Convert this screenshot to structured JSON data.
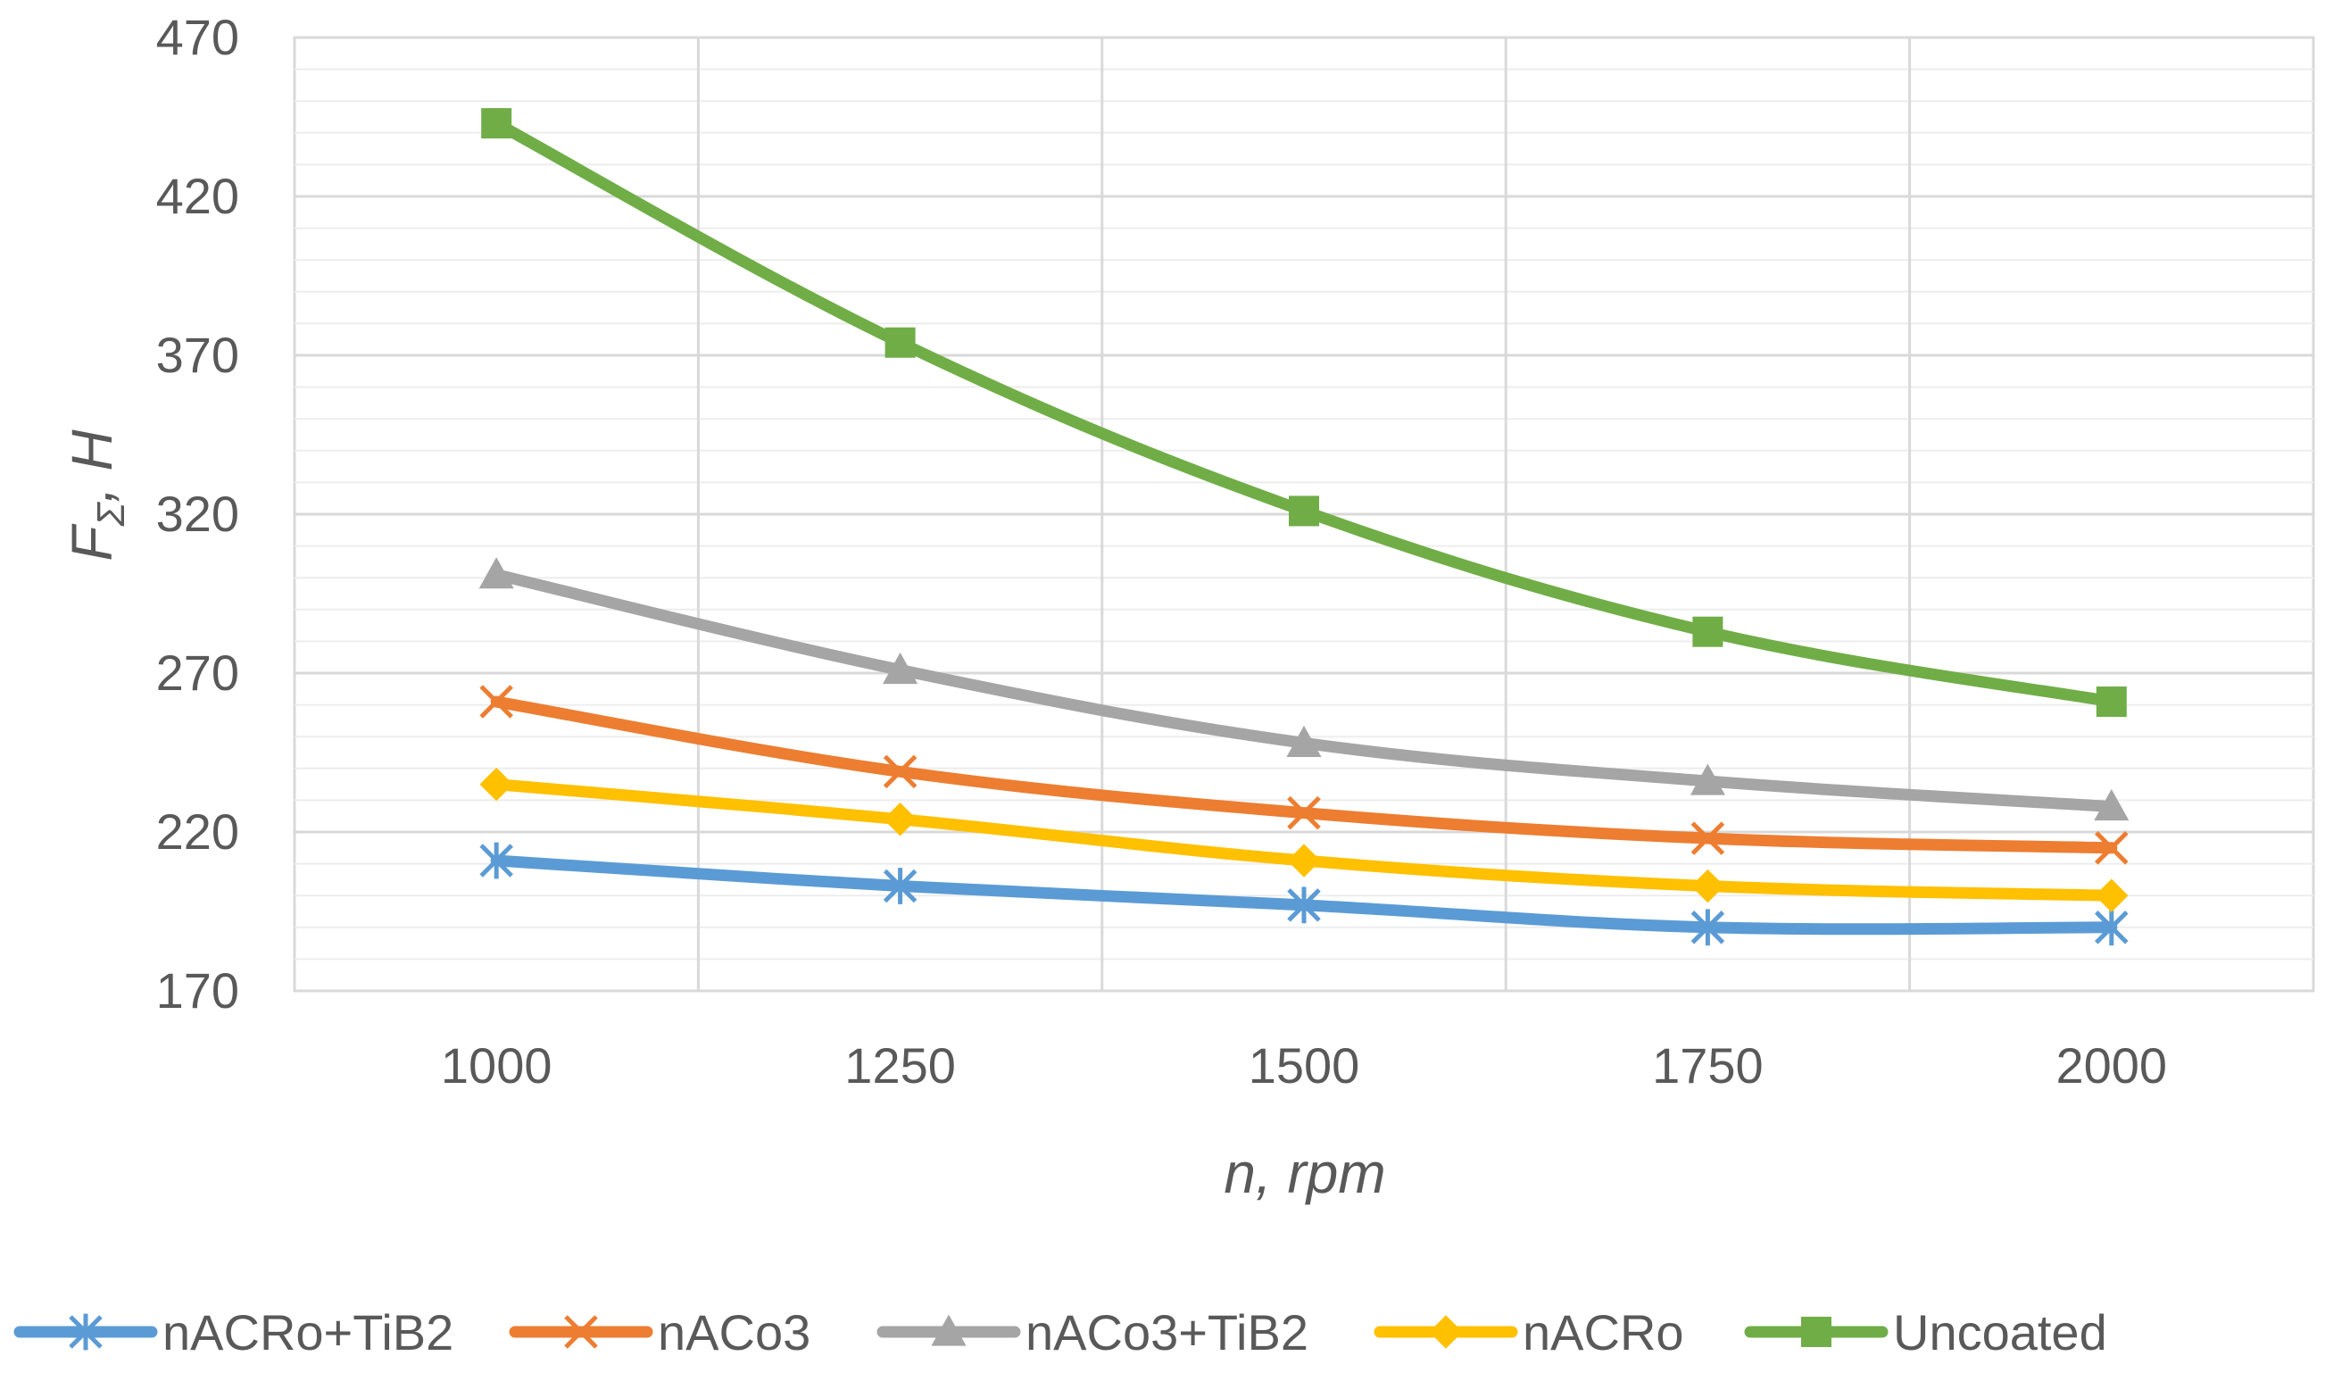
{
  "chart_data": {
    "type": "line",
    "title": "",
    "categories": [
      "1000",
      "1250",
      "1500",
      "1750",
      "2000"
    ],
    "xlabel": "n, rpm",
    "ylabel": {
      "main": "F",
      "sub": "Σ",
      "unit": ", H"
    },
    "ylim": [
      170,
      470
    ],
    "yticks": [
      "170",
      "220",
      "270",
      "320",
      "370",
      "420",
      "470"
    ],
    "grid": true,
    "legend_position": "bottom",
    "series": [
      {
        "name": "nACRo+TiB2",
        "color": "#5B9BD5",
        "marker": "star",
        "values": [
          211,
          203,
          197,
          190,
          190
        ]
      },
      {
        "name": "nACo3",
        "color": "#ED7D31",
        "marker": "x",
        "values": [
          261,
          239,
          226,
          218,
          215
        ]
      },
      {
        "name": "nACo3+TiB2",
        "color": "#A5A5A5",
        "marker": "triangle",
        "values": [
          301,
          271,
          248,
          236,
          228
        ]
      },
      {
        "name": "nACRo",
        "color": "#FFC000",
        "marker": "diamond",
        "values": [
          235,
          224,
          211,
          203,
          200
        ]
      },
      {
        "name": "Uncoated",
        "color": "#70AD47",
        "marker": "square",
        "values": [
          443,
          374,
          321,
          283,
          261
        ]
      }
    ]
  }
}
